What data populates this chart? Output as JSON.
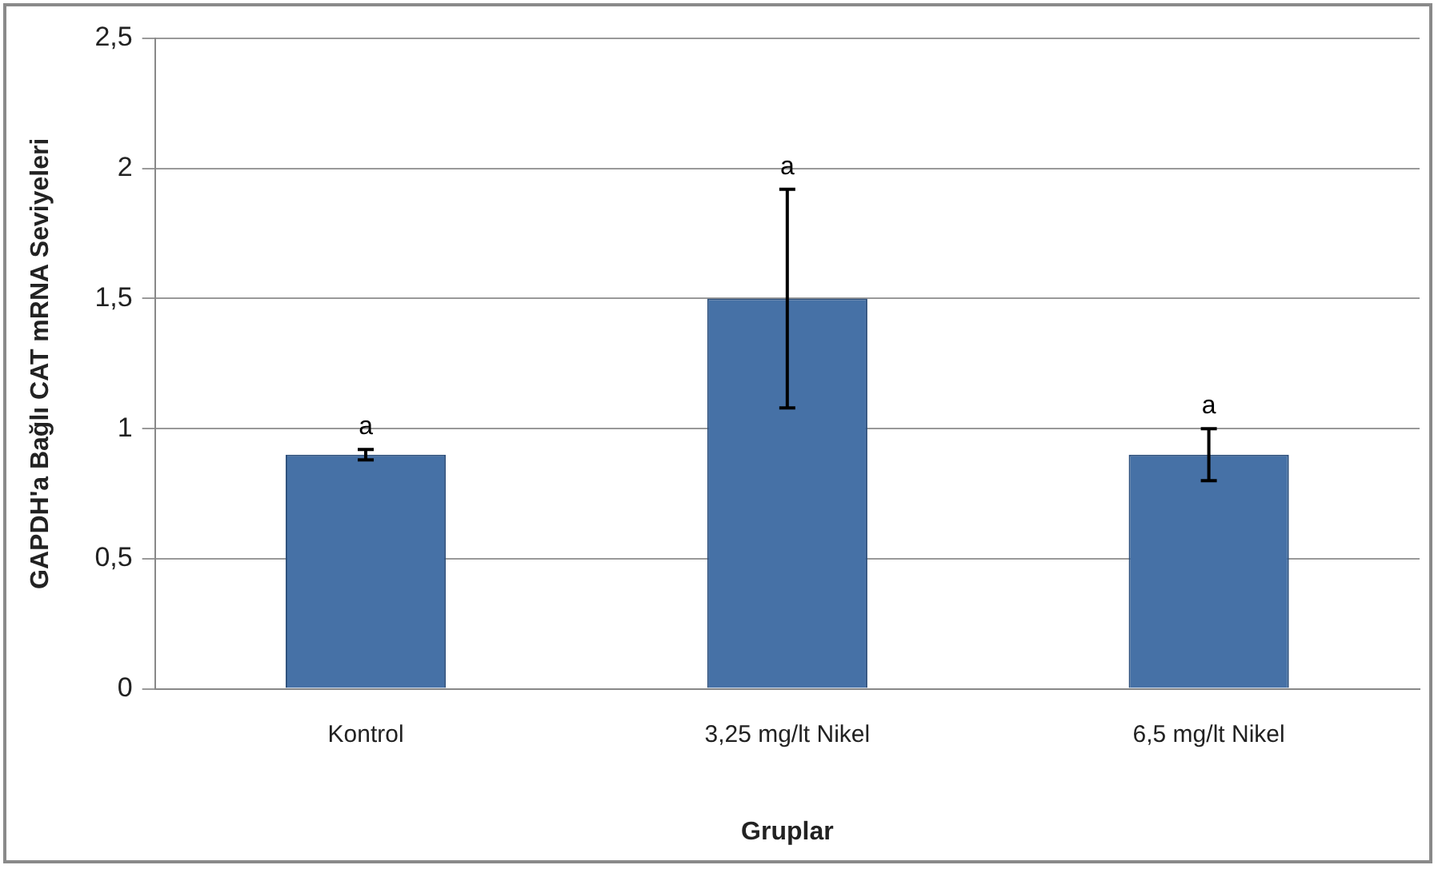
{
  "chart_data": {
    "type": "bar",
    "xlabel": "Gruplar",
    "ylabel": "GAPDH'a Bağlı CAT mRNA Seviyeleri",
    "categories": [
      "Kontrol",
      "3,25 mg/lt Nikel",
      "6,5 mg/lt Nikel"
    ],
    "values": [
      0.9,
      1.5,
      0.9
    ],
    "color": "#4671a6",
    "errors": [
      [
        0.88,
        0.92
      ],
      [
        1.08,
        1.92
      ],
      [
        0.8,
        1.0
      ]
    ],
    "ylim": [
      0,
      2.5
    ],
    "yticks": [
      {
        "value": 0,
        "label": "0"
      },
      {
        "value": 0.5,
        "label": "0,5"
      },
      {
        "value": 1,
        "label": "1"
      },
      {
        "value": 1.5,
        "label": "1,5"
      },
      {
        "value": 2,
        "label": "2"
      },
      {
        "value": 2.5,
        "label": "2,5"
      }
    ],
    "grid": "y",
    "legend": false,
    "annotations": [
      {
        "text": "a",
        "x": "Kontrol",
        "y": 0.92
      },
      {
        "text": "a",
        "x": "3,25 mg/lt Nikel",
        "y": 1.92
      },
      {
        "text": "a",
        "x": "6,5 mg/lt Nikel",
        "y": 1.0
      }
    ]
  }
}
